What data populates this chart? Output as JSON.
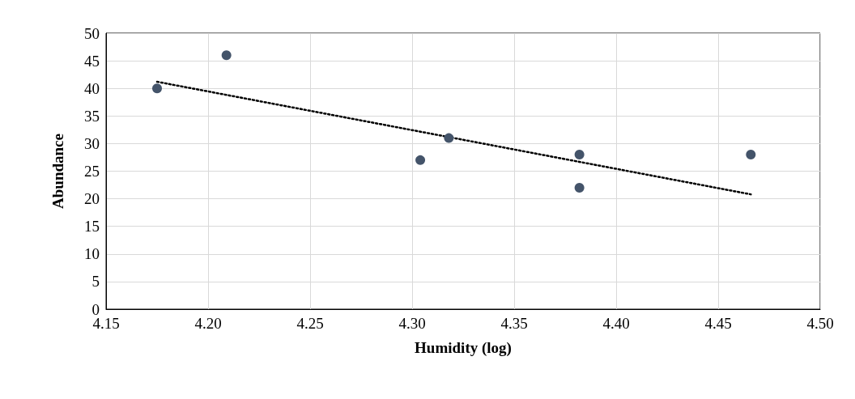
{
  "chart_data": {
    "type": "scatter",
    "xlabel": "Humidity (log)",
    "ylabel": "Abundance",
    "xlim": [
      4.15,
      4.5
    ],
    "xticks": [
      {
        "value": 4.15,
        "label": "4.15"
      },
      {
        "value": 4.2,
        "label": "4.20"
      },
      {
        "value": 4.25,
        "label": "4.25"
      },
      {
        "value": 4.3,
        "label": "4.30"
      },
      {
        "value": 4.35,
        "label": "4.35"
      },
      {
        "value": 4.4,
        "label": "4.40"
      },
      {
        "value": 4.45,
        "label": "4.45"
      },
      {
        "value": 4.5,
        "label": "4.50"
      }
    ],
    "ylim": [
      0,
      50
    ],
    "yticks": [
      0,
      5,
      10,
      15,
      20,
      25,
      30,
      35,
      40,
      45,
      50
    ],
    "grid": true,
    "marker": "circle",
    "series": [
      {
        "color": "#44546a",
        "x": [
          4.175,
          4.209,
          4.304,
          4.318,
          4.382,
          4.382,
          4.466
        ],
        "values": [
          40,
          46,
          27,
          31,
          28,
          22,
          28
        ]
      },
      {
        "type": "line",
        "color": "#000000",
        "line_style": "dotted",
        "marker": "none",
        "x": [
          4.175,
          4.466
        ],
        "values": [
          41.2,
          20.8
        ]
      }
    ]
  }
}
